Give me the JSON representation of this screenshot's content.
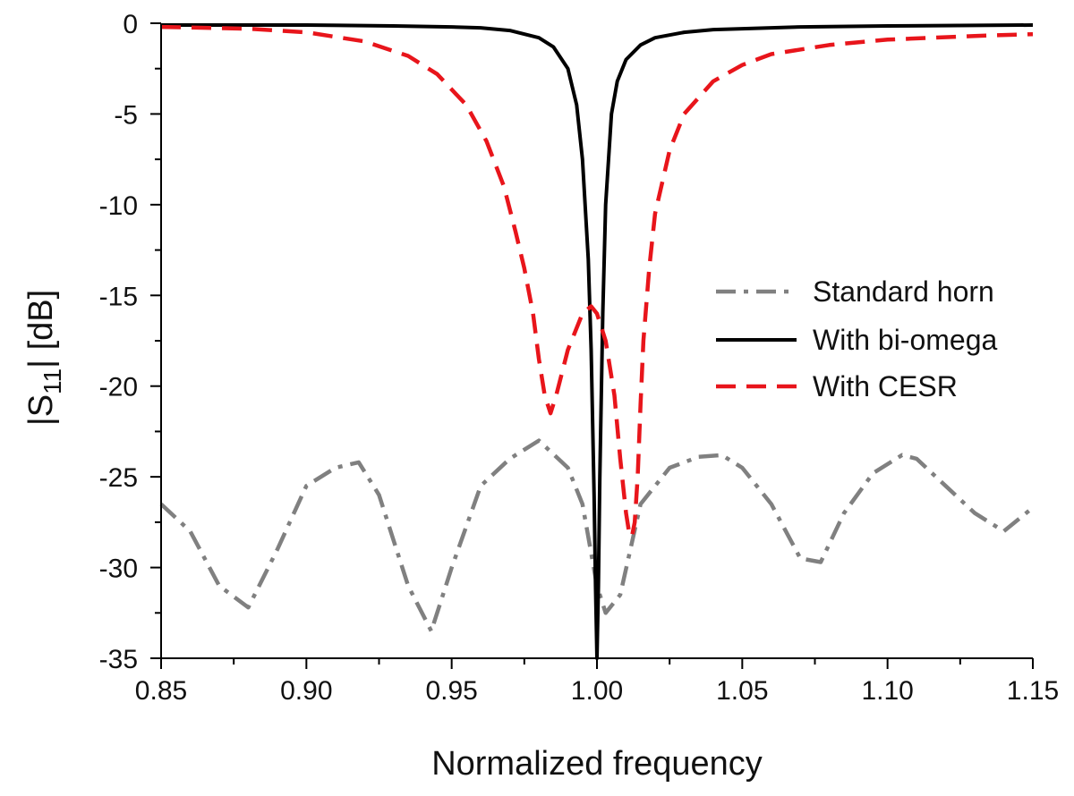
{
  "chart_data": {
    "type": "line",
    "xlabel": "Normalized frequency",
    "ylabel_main": "|S",
    "ylabel_sub": "11",
    "ylabel_rest": "| [dB]",
    "xlim": [
      0.85,
      1.15
    ],
    "ylim": [
      -35,
      0
    ],
    "xticks": [
      0.85,
      0.9,
      0.95,
      1.0,
      1.05,
      1.1,
      1.15
    ],
    "xtick_labels": [
      "0.85",
      "0.90",
      "0.95",
      "1.00",
      "1.05",
      "1.10",
      "1.15"
    ],
    "yticks": [
      0,
      -5,
      -10,
      -15,
      -20,
      -25,
      -30,
      -35
    ],
    "ytick_labels": [
      "0",
      "-5",
      "-10",
      "-15",
      "-20",
      "-25",
      "-30",
      "-35"
    ],
    "grid": false,
    "legend_position": "right",
    "series": [
      {
        "name": "Standard horn",
        "color": "#808080",
        "style": "dashdot",
        "x": [
          0.85,
          0.86,
          0.87,
          0.88,
          0.89,
          0.9,
          0.91,
          0.918,
          0.925,
          0.935,
          0.943,
          0.95,
          0.96,
          0.97,
          0.98,
          0.99,
          0.995,
          1.0,
          1.003,
          1.008,
          1.015,
          1.025,
          1.035,
          1.043,
          1.05,
          1.06,
          1.07,
          1.077,
          1.085,
          1.095,
          1.105,
          1.11,
          1.12,
          1.13,
          1.14,
          1.15
        ],
        "y": [
          -26.5,
          -28.0,
          -31.0,
          -32.2,
          -29.0,
          -25.5,
          -24.5,
          -24.2,
          -26.0,
          -31.0,
          -33.5,
          -30.0,
          -25.5,
          -24.0,
          -23.0,
          -24.5,
          -26.5,
          -31.0,
          -32.5,
          -31.5,
          -26.5,
          -24.5,
          -23.9,
          -23.8,
          -24.5,
          -26.5,
          -29.5,
          -29.7,
          -27.0,
          -24.8,
          -23.8,
          -24.0,
          -25.5,
          -27.0,
          -28.0,
          -26.7
        ]
      },
      {
        "name": "With bi-omega",
        "color": "#000000",
        "style": "solid",
        "x": [
          0.85,
          0.9,
          0.93,
          0.95,
          0.96,
          0.97,
          0.98,
          0.985,
          0.99,
          0.993,
          0.995,
          0.997,
          0.998,
          0.999,
          0.9995,
          1.0,
          1.0005,
          1.001,
          1.002,
          1.003,
          1.005,
          1.007,
          1.01,
          1.015,
          1.02,
          1.03,
          1.04,
          1.05,
          1.07,
          1.1,
          1.15
        ],
        "y": [
          -0.1,
          -0.1,
          -0.15,
          -0.2,
          -0.25,
          -0.4,
          -0.8,
          -1.3,
          -2.5,
          -4.5,
          -7.5,
          -13.0,
          -18.0,
          -26.0,
          -31.0,
          -35.0,
          -31.0,
          -25.0,
          -16.0,
          -10.0,
          -5.0,
          -3.2,
          -2.0,
          -1.2,
          -0.8,
          -0.5,
          -0.35,
          -0.3,
          -0.2,
          -0.15,
          -0.1
        ]
      },
      {
        "name": "With CESR",
        "color": "#e8151b",
        "style": "dashed",
        "x": [
          0.85,
          0.88,
          0.9,
          0.92,
          0.935,
          0.945,
          0.955,
          0.962,
          0.968,
          0.972,
          0.975,
          0.978,
          0.98,
          0.982,
          0.984,
          0.986,
          0.99,
          0.995,
          0.998,
          1.0,
          1.003,
          1.006,
          1.008,
          1.01,
          1.011,
          1.012,
          1.013,
          1.014,
          1.015,
          1.016,
          1.018,
          1.02,
          1.025,
          1.03,
          1.04,
          1.05,
          1.06,
          1.08,
          1.1,
          1.13,
          1.15
        ],
        "y": [
          -0.2,
          -0.3,
          -0.5,
          -1.0,
          -1.8,
          -2.8,
          -4.5,
          -6.5,
          -9.0,
          -11.5,
          -13.5,
          -16.0,
          -18.5,
          -20.5,
          -21.5,
          -20.5,
          -18.0,
          -16.0,
          -15.6,
          -16.0,
          -17.5,
          -20.5,
          -24.0,
          -27.0,
          -28.0,
          -28.3,
          -27.5,
          -25.0,
          -21.0,
          -17.5,
          -13.5,
          -10.5,
          -7.0,
          -5.0,
          -3.2,
          -2.3,
          -1.7,
          -1.2,
          -0.9,
          -0.7,
          -0.6
        ]
      }
    ]
  }
}
